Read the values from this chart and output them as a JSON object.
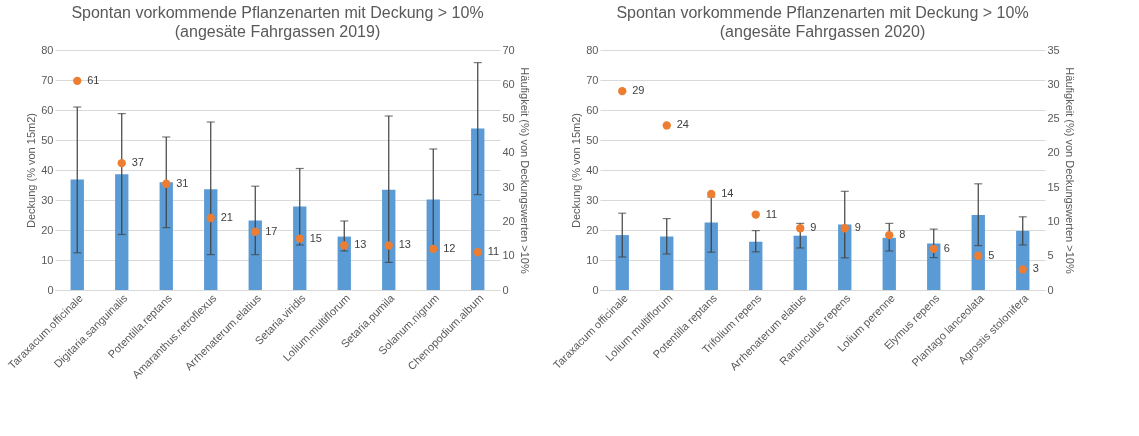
{
  "chart_data": [
    {
      "type": "bar",
      "title": "Spontan vorkommende Pflanzenarten mit Deckung > 10%",
      "subtitle": "(angesäte Fahrgassen 2019)",
      "ylabel": "Deckung (% von 15m2)",
      "y2label": "Häufigkeit (%) von Deckungswerten >10%",
      "categories": [
        "Taraxacum.officinale",
        "Digitaria.sanguinalis",
        "Potentilla.reptans",
        "Amaranthus.retroflexus",
        "Arrhenaterum.elatius",
        "Setaria.viridis",
        "Lolium.multiflorum",
        "Setaria.pumila",
        "Solanum.nigrum",
        "Chenopodium.album"
      ],
      "series": [
        {
          "color": "#5b9bd5",
          "values": [
            36.8,
            38.6,
            35.9,
            33.6,
            23.2,
            27.8,
            17.8,
            33.4,
            30.2,
            53.8
          ],
          "errors": [
            [
              12.4,
              61
            ],
            [
              18.5,
              58.8
            ],
            [
              20.8,
              51
            ],
            [
              11.8,
              56
            ],
            [
              11.8,
              34.6
            ],
            [
              15,
              40.5
            ],
            [
              13,
              23
            ],
            [
              9.2,
              58
            ],
            [
              13.2,
              47
            ],
            [
              31.8,
              75.8
            ]
          ]
        },
        {
          "type": "scatter",
          "axis": "y2",
          "color": "#ed7d31",
          "values": [
            61,
            37,
            31,
            21,
            17,
            15,
            13,
            13,
            12,
            11
          ],
          "value_labels": [
            "61",
            "37",
            "31",
            "21",
            "17",
            "15",
            "13",
            "13",
            "12",
            "11"
          ]
        }
      ],
      "ylim": [
        0,
        80
      ],
      "yticks": [
        0,
        10,
        20,
        30,
        40,
        50,
        60,
        70,
        80
      ],
      "y2lim": [
        0,
        70
      ],
      "y2ticks": [
        0,
        10,
        20,
        30,
        40,
        50,
        60,
        70
      ],
      "grid": "y"
    },
    {
      "type": "bar",
      "title": "Spontan vorkommende Pflanzenarten mit Deckung > 10%",
      "subtitle": "(angesäte Fahrgassen 2020)",
      "ylabel": "Deckung (% von 15m2)",
      "y2label": "Häufigkeit (%) von Deckungswerten >10%",
      "categories": [
        "Taraxacum officinale",
        "Lolium multiflorum",
        "Potentilla reptans",
        "Trifolium repens",
        "Arrhenaterum elatius",
        "Ranunculus repens",
        "Lolium perenne",
        "Elymus repens",
        "Plantago lanceolata",
        "Agrostis stolonifera"
      ],
      "series": [
        {
          "color": "#5b9bd5",
          "values": [
            18.3,
            17.8,
            22.5,
            16.1,
            18.1,
            21.8,
            17.4,
            15.5,
            25,
            19.7
          ],
          "errors": [
            [
              11,
              25.6
            ],
            [
              12,
              23.8
            ],
            [
              12.6,
              31
            ],
            [
              12.7,
              19.8
            ],
            [
              14,
              22.2
            ],
            [
              10.7,
              32.9
            ],
            [
              13,
              22.2
            ],
            [
              10.8,
              20.3
            ],
            [
              14.8,
              35.4
            ],
            [
              15,
              24.4
            ]
          ]
        },
        {
          "type": "scatter",
          "axis": "y2",
          "color": "#ed7d31",
          "values": [
            29,
            24,
            14,
            11,
            9,
            9,
            8,
            6,
            5,
            3
          ],
          "value_labels": [
            "29",
            "24",
            "14",
            "11",
            "9",
            "9",
            "8",
            "6",
            "5",
            "3"
          ]
        }
      ],
      "ylim": [
        0,
        80
      ],
      "yticks": [
        0,
        10,
        20,
        30,
        40,
        50,
        60,
        70,
        80
      ],
      "y2lim": [
        0,
        35
      ],
      "y2ticks": [
        0,
        5,
        10,
        15,
        20,
        25,
        30,
        35
      ],
      "grid": "y"
    }
  ]
}
